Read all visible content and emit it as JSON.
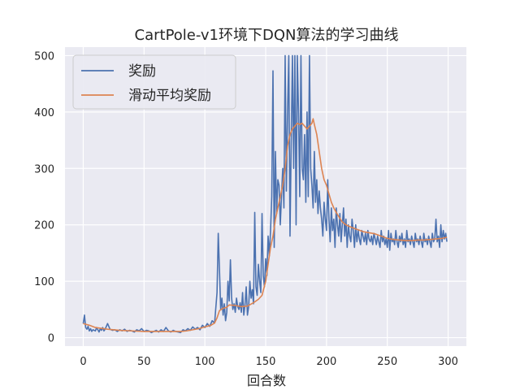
{
  "chart_data": {
    "type": "line",
    "title": "CartPole-v1环境下DQN算法的学习曲线",
    "xlabel": "回合数",
    "ylabel": "",
    "xlim": [
      -15,
      315
    ],
    "ylim": [
      -15,
      515
    ],
    "xticks": [
      0,
      50,
      100,
      150,
      200,
      250,
      300
    ],
    "yticks": [
      0,
      100,
      200,
      300,
      400,
      500
    ],
    "grid": true,
    "legend_position": "top-left",
    "series": [
      {
        "name": "奖励",
        "color": "#4c72b0",
        "points": [
          [
            0,
            25
          ],
          [
            1,
            40
          ],
          [
            2,
            18
          ],
          [
            3,
            15
          ],
          [
            4,
            20
          ],
          [
            5,
            12
          ],
          [
            6,
            16
          ],
          [
            7,
            11
          ],
          [
            8,
            14
          ],
          [
            9,
            13
          ],
          [
            10,
            12
          ],
          [
            11,
            18
          ],
          [
            12,
            14
          ],
          [
            13,
            10
          ],
          [
            14,
            16
          ],
          [
            15,
            13
          ],
          [
            16,
            18
          ],
          [
            17,
            12
          ],
          [
            18,
            15
          ],
          [
            19,
            20
          ],
          [
            20,
            25
          ],
          [
            22,
            15
          ],
          [
            24,
            13
          ],
          [
            26,
            14
          ],
          [
            28,
            11
          ],
          [
            30,
            14
          ],
          [
            32,
            12
          ],
          [
            34,
            15
          ],
          [
            36,
            11
          ],
          [
            38,
            13
          ],
          [
            40,
            12
          ],
          [
            42,
            10
          ],
          [
            44,
            14
          ],
          [
            46,
            12
          ],
          [
            48,
            16
          ],
          [
            50,
            11
          ],
          [
            52,
            13
          ],
          [
            54,
            12
          ],
          [
            56,
            9
          ],
          [
            58,
            11
          ],
          [
            60,
            13
          ],
          [
            62,
            10
          ],
          [
            64,
            14
          ],
          [
            66,
            11
          ],
          [
            68,
            18
          ],
          [
            70,
            12
          ],
          [
            72,
            10
          ],
          [
            74,
            13
          ],
          [
            76,
            11
          ],
          [
            78,
            10
          ],
          [
            80,
            9
          ],
          [
            82,
            14
          ],
          [
            84,
            12
          ],
          [
            86,
            16
          ],
          [
            88,
            13
          ],
          [
            90,
            19
          ],
          [
            92,
            15
          ],
          [
            94,
            18
          ],
          [
            96,
            14
          ],
          [
            98,
            22
          ],
          [
            100,
            18
          ],
          [
            102,
            25
          ],
          [
            104,
            20
          ],
          [
            106,
            30
          ],
          [
            108,
            26
          ],
          [
            110,
            80
          ],
          [
            111,
            185
          ],
          [
            112,
            120
          ],
          [
            113,
            50
          ],
          [
            114,
            70
          ],
          [
            115,
            40
          ],
          [
            116,
            60
          ],
          [
            117,
            30
          ],
          [
            118,
            45
          ],
          [
            119,
            100
          ],
          [
            120,
            65
          ],
          [
            121,
            138
          ],
          [
            122,
            70
          ],
          [
            123,
            50
          ],
          [
            124,
            60
          ],
          [
            125,
            45
          ],
          [
            126,
            70
          ],
          [
            127,
            55
          ],
          [
            128,
            50
          ],
          [
            129,
            62
          ],
          [
            130,
            45
          ],
          [
            131,
            80
          ],
          [
            132,
            40
          ],
          [
            133,
            58
          ],
          [
            134,
            90
          ],
          [
            135,
            40
          ],
          [
            136,
            55
          ],
          [
            137,
            100
          ],
          [
            138,
            70
          ],
          [
            139,
            85
          ],
          [
            140,
            60
          ],
          [
            141,
            222
          ],
          [
            142,
            90
          ],
          [
            143,
            75
          ],
          [
            144,
            130
          ],
          [
            145,
            100
          ],
          [
            146,
            80
          ],
          [
            147,
            220
          ],
          [
            148,
            110
          ],
          [
            149,
            90
          ],
          [
            150,
            140
          ],
          [
            151,
            110
          ],
          [
            152,
            180
          ],
          [
            153,
            145
          ],
          [
            154,
            190
          ],
          [
            155,
            250
          ],
          [
            156,
            473
          ],
          [
            157,
            160
          ],
          [
            158,
            330
          ],
          [
            159,
            220
          ],
          [
            160,
            280
          ],
          [
            161,
            270
          ],
          [
            162,
            200
          ],
          [
            163,
            250
          ],
          [
            164,
            300
          ],
          [
            165,
            230
          ],
          [
            166,
            500
          ],
          [
            167,
            260
          ],
          [
            168,
            400
          ],
          [
            169,
            500
          ],
          [
            170,
            180
          ],
          [
            171,
            350
          ],
          [
            172,
            500
          ],
          [
            173,
            300
          ],
          [
            174,
            500
          ],
          [
            175,
            200
          ],
          [
            176,
            500
          ],
          [
            177,
            400
          ],
          [
            178,
            250
          ],
          [
            179,
            500
          ],
          [
            180,
            300
          ],
          [
            181,
            280
          ],
          [
            182,
            360
          ],
          [
            183,
            240
          ],
          [
            184,
            400
          ],
          [
            185,
            250
          ],
          [
            186,
            500
          ],
          [
            187,
            300
          ],
          [
            188,
            270
          ],
          [
            189,
            230
          ],
          [
            190,
            330
          ],
          [
            191,
            240
          ],
          [
            192,
            280
          ],
          [
            193,
            220
          ],
          [
            194,
            260
          ],
          [
            195,
            230
          ],
          [
            196,
            210
          ],
          [
            197,
            180
          ],
          [
            198,
            240
          ],
          [
            199,
            210
          ],
          [
            200,
            190
          ],
          [
            201,
            280
          ],
          [
            202,
            210
          ],
          [
            203,
            170
          ],
          [
            204,
            230
          ],
          [
            205,
            190
          ],
          [
            206,
            210
          ],
          [
            207,
            160
          ],
          [
            208,
            230
          ],
          [
            209,
            200
          ],
          [
            210,
            180
          ],
          [
            211,
            220
          ],
          [
            212,
            170
          ],
          [
            213,
            200
          ],
          [
            214,
            230
          ],
          [
            215,
            180
          ],
          [
            216,
            210
          ],
          [
            217,
            160
          ],
          [
            218,
            200
          ],
          [
            219,
            180
          ],
          [
            220,
            170
          ],
          [
            221,
            210
          ],
          [
            222,
            190
          ],
          [
            223,
            160
          ],
          [
            224,
            200
          ],
          [
            225,
            170
          ],
          [
            226,
            190
          ],
          [
            227,
            175
          ],
          [
            228,
            165
          ],
          [
            229,
            190
          ],
          [
            230,
            180
          ],
          [
            231,
            170
          ],
          [
            232,
            185
          ],
          [
            233,
            165
          ],
          [
            234,
            190
          ],
          [
            235,
            175
          ],
          [
            236,
            170
          ],
          [
            237,
            180
          ],
          [
            238,
            165
          ],
          [
            239,
            185
          ],
          [
            240,
            175
          ],
          [
            241,
            165
          ],
          [
            242,
            180
          ],
          [
            243,
            170
          ],
          [
            244,
            160
          ],
          [
            245,
            190
          ],
          [
            246,
            170
          ],
          [
            247,
            180
          ],
          [
            248,
            165
          ],
          [
            249,
            175
          ],
          [
            250,
            160
          ],
          [
            251,
            190
          ],
          [
            252,
            155
          ],
          [
            253,
            185
          ],
          [
            254,
            170
          ],
          [
            255,
            175
          ],
          [
            256,
            165
          ],
          [
            257,
            190
          ],
          [
            258,
            170
          ],
          [
            259,
            160
          ],
          [
            260,
            180
          ],
          [
            261,
            170
          ],
          [
            262,
            185
          ],
          [
            263,
            165
          ],
          [
            264,
            175
          ],
          [
            265,
            160
          ],
          [
            266,
            190
          ],
          [
            267,
            170
          ],
          [
            268,
            175
          ],
          [
            269,
            165
          ],
          [
            270,
            180
          ],
          [
            271,
            170
          ],
          [
            272,
            160
          ],
          [
            273,
            185
          ],
          [
            274,
            170
          ],
          [
            275,
            175
          ],
          [
            276,
            165
          ],
          [
            277,
            180
          ],
          [
            278,
            170
          ],
          [
            279,
            160
          ],
          [
            280,
            185
          ],
          [
            281,
            170
          ],
          [
            282,
            175
          ],
          [
            283,
            165
          ],
          [
            284,
            180
          ],
          [
            285,
            170
          ],
          [
            286,
            160
          ],
          [
            287,
            185
          ],
          [
            288,
            170
          ],
          [
            289,
            175
          ],
          [
            290,
            210
          ],
          [
            291,
            170
          ],
          [
            292,
            180
          ],
          [
            293,
            160
          ],
          [
            294,
            200
          ],
          [
            295,
            170
          ],
          [
            296,
            190
          ],
          [
            297,
            175
          ],
          [
            298,
            185
          ],
          [
            299,
            170
          ]
        ]
      },
      {
        "name": "滑动平均奖励",
        "color": "#dd8452",
        "points": [
          [
            0,
            25
          ],
          [
            5,
            22
          ],
          [
            10,
            18
          ],
          [
            20,
            15
          ],
          [
            30,
            13
          ],
          [
            40,
            12
          ],
          [
            50,
            11
          ],
          [
            60,
            11
          ],
          [
            70,
            11
          ],
          [
            80,
            11
          ],
          [
            85,
            12
          ],
          [
            90,
            14
          ],
          [
            95,
            16
          ],
          [
            100,
            19
          ],
          [
            105,
            22
          ],
          [
            108,
            26
          ],
          [
            110,
            35
          ],
          [
            112,
            48
          ],
          [
            115,
            52
          ],
          [
            118,
            54
          ],
          [
            120,
            58
          ],
          [
            125,
            57
          ],
          [
            130,
            55
          ],
          [
            135,
            56
          ],
          [
            140,
            62
          ],
          [
            144,
            68
          ],
          [
            147,
            75
          ],
          [
            150,
            100
          ],
          [
            152,
            130
          ],
          [
            154,
            160
          ],
          [
            156,
            180
          ],
          [
            158,
            210
          ],
          [
            160,
            230
          ],
          [
            162,
            250
          ],
          [
            164,
            270
          ],
          [
            166,
            300
          ],
          [
            168,
            340
          ],
          [
            170,
            360
          ],
          [
            172,
            370
          ],
          [
            174,
            375
          ],
          [
            176,
            380
          ],
          [
            178,
            378
          ],
          [
            180,
            380
          ],
          [
            182,
            375
          ],
          [
            184,
            370
          ],
          [
            186,
            375
          ],
          [
            188,
            380
          ],
          [
            189,
            388
          ],
          [
            190,
            378
          ],
          [
            192,
            360
          ],
          [
            194,
            330
          ],
          [
            196,
            300
          ],
          [
            198,
            280
          ],
          [
            200,
            270
          ],
          [
            202,
            255
          ],
          [
            204,
            240
          ],
          [
            206,
            230
          ],
          [
            208,
            222
          ],
          [
            210,
            215
          ],
          [
            213,
            205
          ],
          [
            216,
            200
          ],
          [
            220,
            196
          ],
          [
            225,
            192
          ],
          [
            230,
            188
          ],
          [
            235,
            186
          ],
          [
            240,
            184
          ],
          [
            245,
            180
          ],
          [
            250,
            176
          ],
          [
            255,
            174
          ],
          [
            260,
            173
          ],
          [
            265,
            172
          ],
          [
            270,
            172
          ],
          [
            275,
            173
          ],
          [
            280,
            173
          ],
          [
            285,
            174
          ],
          [
            290,
            175
          ],
          [
            295,
            176
          ],
          [
            299,
            178
          ]
        ]
      }
    ]
  }
}
